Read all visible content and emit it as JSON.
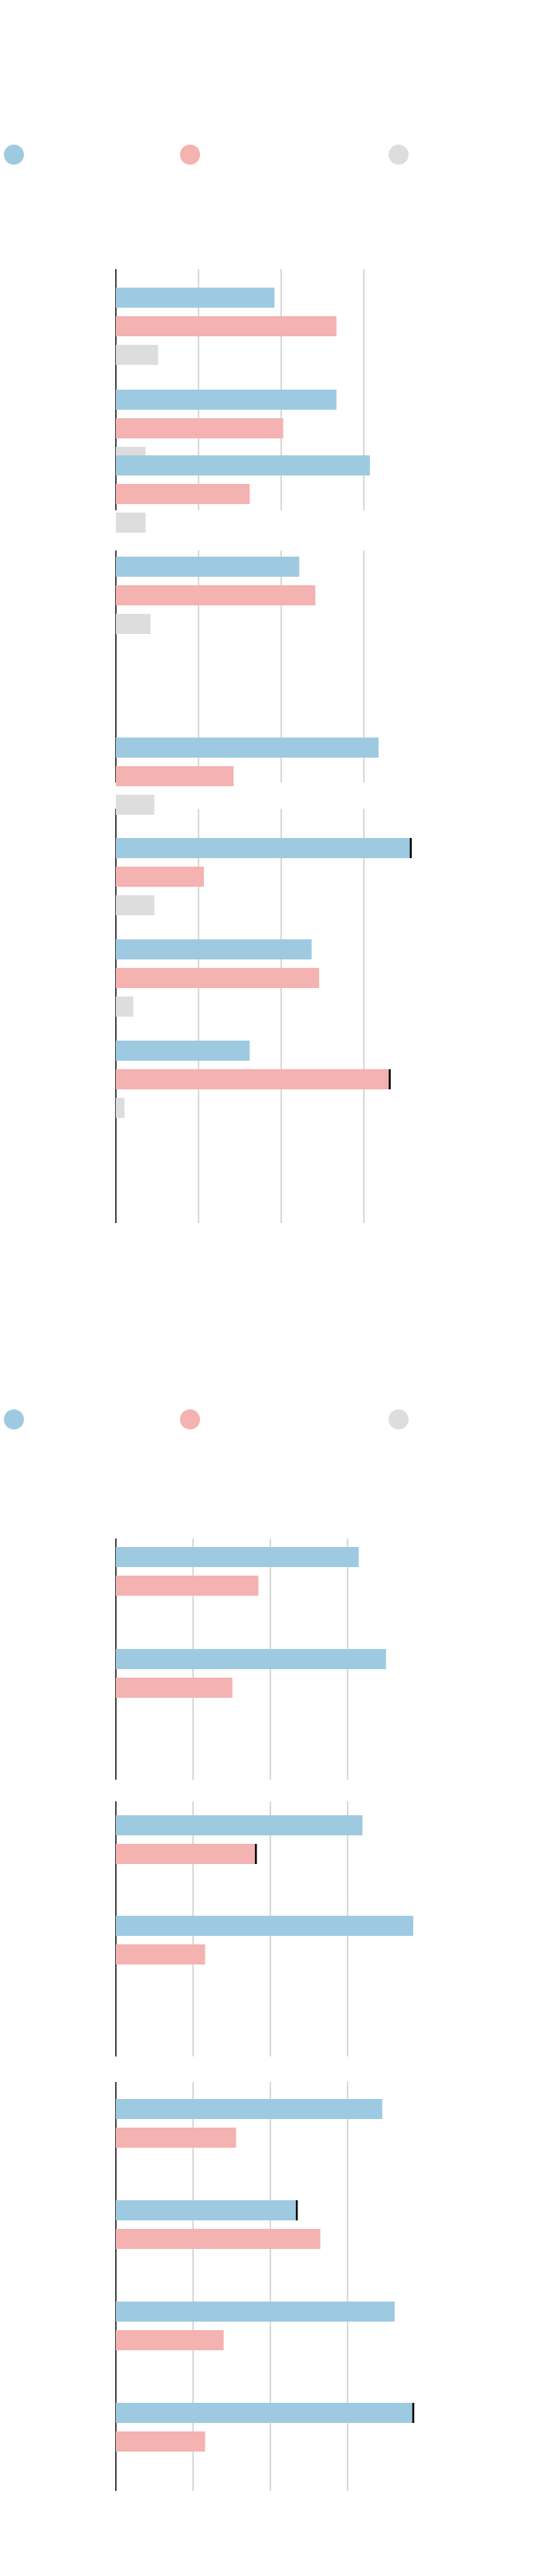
{
  "colors": {
    "blue": "#9ecae1",
    "pink": "#f4b2b0",
    "gray": "#dddddd"
  },
  "legend_swatches": [
    {
      "color": "blue"
    },
    {
      "color": "pink"
    },
    {
      "color": "gray"
    }
  ],
  "chart_data": [
    {
      "type": "bar",
      "orientation": "horizontal",
      "xlim": [
        0,
        240
      ],
      "grid": true,
      "groups": [
        {
          "series": [
            {
              "color": "blue",
              "values": [
                128,
                178
              ]
            },
            {
              "color": "pink",
              "values": [
                178,
                135
              ]
            },
            {
              "color": "gray",
              "values": [
                34,
                24
              ]
            }
          ]
        },
        {
          "series": [
            {
              "color": "blue",
              "values": [
                205,
                148
              ]
            },
            {
              "color": "pink",
              "values": [
                108,
                161
              ]
            },
            {
              "color": "gray",
              "values": [
                24,
                28
              ]
            }
          ]
        },
        {
          "series": [
            {
              "color": "blue",
              "values": [
                212,
                238,
                158,
                108
              ]
            },
            {
              "color": "pink",
              "values": [
                95,
                71,
                164,
                221
              ]
            },
            {
              "color": "gray",
              "values": [
                31,
                31,
                14,
                7
              ]
            }
          ]
        }
      ]
    },
    {
      "type": "bar",
      "orientation": "horizontal",
      "xlim": [
        0,
        240
      ],
      "grid": true,
      "groups": [
        {
          "series": [
            {
              "color": "blue",
              "values": [
                196,
                218
              ]
            },
            {
              "color": "pink",
              "values": [
                115,
                94
              ]
            }
          ]
        },
        {
          "series": [
            {
              "color": "blue",
              "values": [
                199,
                240
              ]
            },
            {
              "color": "pink",
              "values": [
                113,
                72
              ]
            }
          ]
        },
        {
          "series": [
            {
              "color": "blue",
              "values": [
                215,
                146,
                225,
                240
              ]
            },
            {
              "color": "pink",
              "values": [
                97,
                165,
                87,
                72
              ]
            }
          ]
        }
      ]
    }
  ]
}
